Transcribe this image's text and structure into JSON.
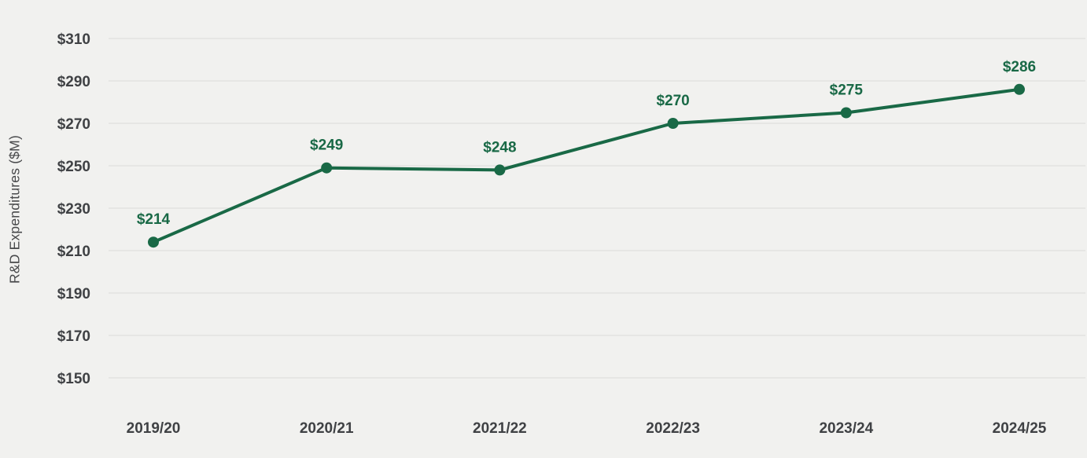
{
  "chart_data": {
    "type": "line",
    "title": "",
    "xlabel": "",
    "ylabel": "R&D Expenditures ($M)",
    "categories": [
      "2019/20",
      "2020/21",
      "2021/22",
      "2022/23",
      "2023/24",
      "2024/25"
    ],
    "series": [
      {
        "name": "R&D Expenditures",
        "values": [
          214,
          249,
          248,
          270,
          275,
          286
        ]
      }
    ],
    "data_labels": [
      "$214",
      "$249",
      "$248",
      "$270",
      "$275",
      "$286"
    ],
    "ylim": [
      150,
      310
    ],
    "ytick_step": 20,
    "ytick_labels": [
      "$150",
      "$170",
      "$190",
      "$210",
      "$230",
      "$250",
      "$270",
      "$290",
      "$310"
    ],
    "tick_prefix": "$",
    "grid": true,
    "legend": false,
    "colors": {
      "line": "#196946",
      "marker": "#196946",
      "data_label": "#196946",
      "background": "#f1f1ef",
      "gridline": "#dcdcda",
      "tick_text": "#3f4144",
      "axis_title_text": "#48494b"
    }
  }
}
